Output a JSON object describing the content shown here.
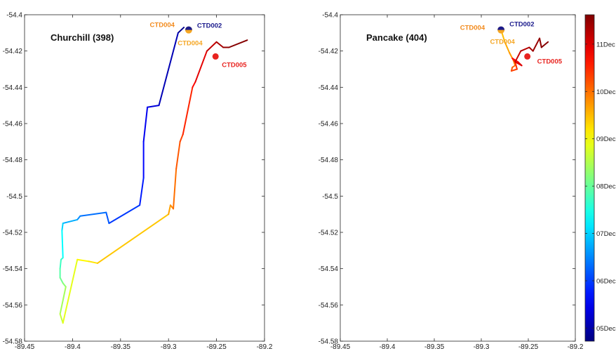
{
  "chart_data": [
    {
      "type": "line",
      "title": "Churchill (398)",
      "xlim": [
        -89.45,
        -89.2
      ],
      "ylim": [
        -54.58,
        -54.4
      ],
      "xticks": [
        "-89.45",
        "-89.4",
        "-89.35",
        "-89.3",
        "-89.25",
        "-89.2"
      ],
      "yticks": [
        "-54.4",
        "-54.42",
        "-54.44",
        "-54.46",
        "-54.48",
        "-54.5",
        "-54.52",
        "-54.54",
        "-54.56",
        "-54.58"
      ],
      "grid": false,
      "track": {
        "x": [
          -89.284,
          -89.29,
          -89.31,
          -89.322,
          -89.326,
          -89.326,
          -89.33,
          -89.362,
          -89.365,
          -89.392,
          -89.395,
          -89.41,
          -89.411,
          -89.41,
          -89.412,
          -89.413,
          -89.413,
          -89.41,
          -89.407,
          -89.413,
          -89.41,
          -89.395,
          -89.383,
          -89.374,
          -89.3,
          -89.298,
          -89.295,
          -89.292,
          -89.288,
          -89.285,
          -89.275,
          -89.272,
          -89.26,
          -89.25,
          -89.243,
          -89.237,
          -89.218
        ],
        "y": [
          -54.407,
          -54.41,
          -54.45,
          -54.451,
          -54.47,
          -54.49,
          -54.505,
          -54.515,
          -54.509,
          -54.511,
          -54.513,
          -54.515,
          -54.519,
          -54.534,
          -54.535,
          -54.54,
          -54.545,
          -54.548,
          -54.55,
          -54.565,
          -54.57,
          -54.535,
          -54.536,
          -54.537,
          -54.51,
          -54.505,
          -54.507,
          -54.485,
          -54.47,
          -54.466,
          -54.44,
          -54.437,
          -54.42,
          -54.415,
          -54.418,
          -54.418,
          -54.414
        ],
        "time": [
          0,
          0.025,
          0.08,
          0.1,
          0.12,
          0.14,
          0.16,
          0.2,
          0.22,
          0.25,
          0.27,
          0.32,
          0.35,
          0.4,
          0.42,
          0.45,
          0.47,
          0.5,
          0.52,
          0.55,
          0.58,
          0.62,
          0.64,
          0.66,
          0.7,
          0.73,
          0.75,
          0.78,
          0.8,
          0.82,
          0.86,
          0.88,
          0.92,
          0.95,
          0.97,
          0.99,
          1.0
        ]
      },
      "stations": [
        {
          "name": "CTD002",
          "x": -89.279,
          "y": -54.408,
          "color": "#1a1a8c"
        },
        {
          "name": "CTD004",
          "x": -89.279,
          "y": -54.409,
          "color": "#f28a1c"
        },
        {
          "name": "CTD004",
          "x": -89.279,
          "y": -54.409,
          "color": "#f5a623"
        },
        {
          "name": "CTD005",
          "x": -89.251,
          "y": -54.423,
          "color": "#e8231f"
        }
      ]
    },
    {
      "type": "line",
      "title": "Pancake (404)",
      "xlim": [
        -89.45,
        -89.2
      ],
      "ylim": [
        -54.58,
        -54.4
      ],
      "xticks": [
        "-89.45",
        "-89.4",
        "-89.35",
        "-89.3",
        "-89.25",
        "-89.2"
      ],
      "yticks": [
        "-54.4",
        "-54.42",
        "-54.44",
        "-54.46",
        "-54.48",
        "-54.5",
        "-54.52",
        "-54.54",
        "-54.56",
        "-54.58"
      ],
      "grid": false,
      "track": {
        "x": [
          -89.279,
          -89.278,
          -89.275,
          -89.27,
          -89.266,
          -89.264,
          -89.267,
          -89.268,
          -89.262,
          -89.264,
          -89.267,
          -89.261,
          -89.257,
          -89.264,
          -89.258,
          -89.249,
          -89.245,
          -89.238,
          -89.236,
          -89.229
        ],
        "y": [
          -54.408,
          -54.41,
          -54.415,
          -54.421,
          -54.425,
          -54.428,
          -54.429,
          -54.431,
          -54.43,
          -54.426,
          -54.424,
          -54.426,
          -54.428,
          -54.426,
          -54.42,
          -54.418,
          -54.42,
          -54.413,
          -54.418,
          -54.415
        ],
        "time": [
          0.66,
          0.68,
          0.7,
          0.72,
          0.74,
          0.76,
          0.78,
          0.8,
          0.82,
          0.84,
          0.86,
          0.88,
          0.9,
          0.92,
          0.94,
          0.955,
          0.97,
          0.98,
          0.99,
          1.0
        ]
      },
      "stations": [
        {
          "name": "CTD002",
          "x": -89.279,
          "y": -54.408,
          "color": "#1a1a8c"
        },
        {
          "name": "CTD004",
          "x": -89.279,
          "y": -54.409,
          "color": "#f28a1c"
        },
        {
          "name": "CTD004",
          "x": -89.279,
          "y": -54.409,
          "color": "#f5a623"
        },
        {
          "name": "CTD005",
          "x": -89.251,
          "y": -54.423,
          "color": "#e8231f"
        }
      ]
    }
  ],
  "colorbar": {
    "colormap": "jet",
    "ticks": [
      "05Dec",
      "06Dec",
      "07Dec",
      "08Dec",
      "09Dec",
      "10Dec",
      "11Dec"
    ],
    "tick_positions": [
      0.04,
      0.185,
      0.33,
      0.475,
      0.62,
      0.765,
      0.91
    ]
  }
}
